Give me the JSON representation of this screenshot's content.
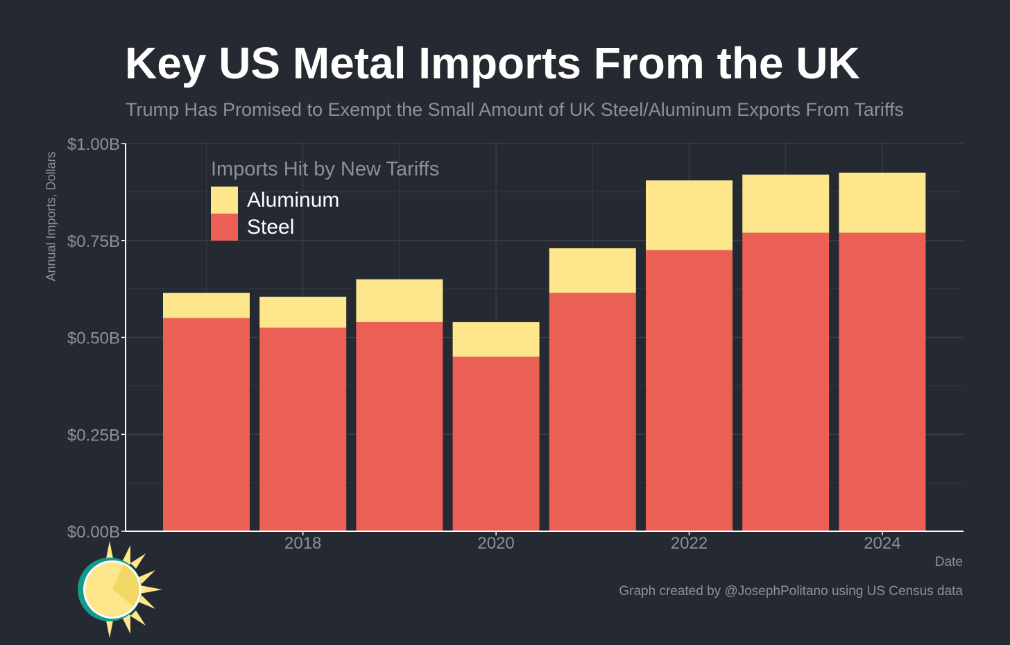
{
  "title": "Key US Metal Imports From the UK",
  "subtitle": "Trump Has Promised to Exempt the Small Amount of UK Steel/Aluminum Exports From Tariffs",
  "credit": "Graph created by @JosephPolitano using US Census data",
  "logo_icon": "sun-logo-icon",
  "colors": {
    "background": "#252932",
    "steel": "#ec5f55",
    "aluminum": "#fde68b",
    "grid": "#3d414b",
    "axis": "#ffffff",
    "muted_text": "#8d9099"
  },
  "chart_data": {
    "type": "bar",
    "stacked": true,
    "title": "Key US Metal Imports From the UK",
    "subtitle": "Trump Has Promised to Exempt the Small Amount of UK Steel/Aluminum Exports From Tariffs",
    "xlabel": "Date",
    "ylabel": "Annual Imports, Dollars",
    "categories": [
      "2017",
      "2018",
      "2019",
      "2020",
      "2021",
      "2022",
      "2023",
      "2024"
    ],
    "x_ticks": [
      "2018",
      "2020",
      "2022",
      "2024"
    ],
    "y_ticks": [
      {
        "value": 0,
        "label": "$0.00B"
      },
      {
        "value": 0.25,
        "label": "$0.25B"
      },
      {
        "value": 0.5,
        "label": "$0.50B"
      },
      {
        "value": 0.75,
        "label": "$0.75B"
      },
      {
        "value": 1.0,
        "label": "$1.00B"
      }
    ],
    "ylim": [
      0,
      1.0
    ],
    "unit": "billions of dollars",
    "grid": true,
    "legend": {
      "title": "Imports Hit by New Tariffs",
      "position": "top-left"
    },
    "series": [
      {
        "name": "Steel",
        "color": "#ec5f55",
        "values": [
          0.55,
          0.525,
          0.54,
          0.45,
          0.615,
          0.725,
          0.77,
          0.77
        ]
      },
      {
        "name": "Aluminum",
        "color": "#fde68b",
        "values": [
          0.065,
          0.08,
          0.11,
          0.09,
          0.115,
          0.18,
          0.15,
          0.155
        ]
      }
    ]
  }
}
